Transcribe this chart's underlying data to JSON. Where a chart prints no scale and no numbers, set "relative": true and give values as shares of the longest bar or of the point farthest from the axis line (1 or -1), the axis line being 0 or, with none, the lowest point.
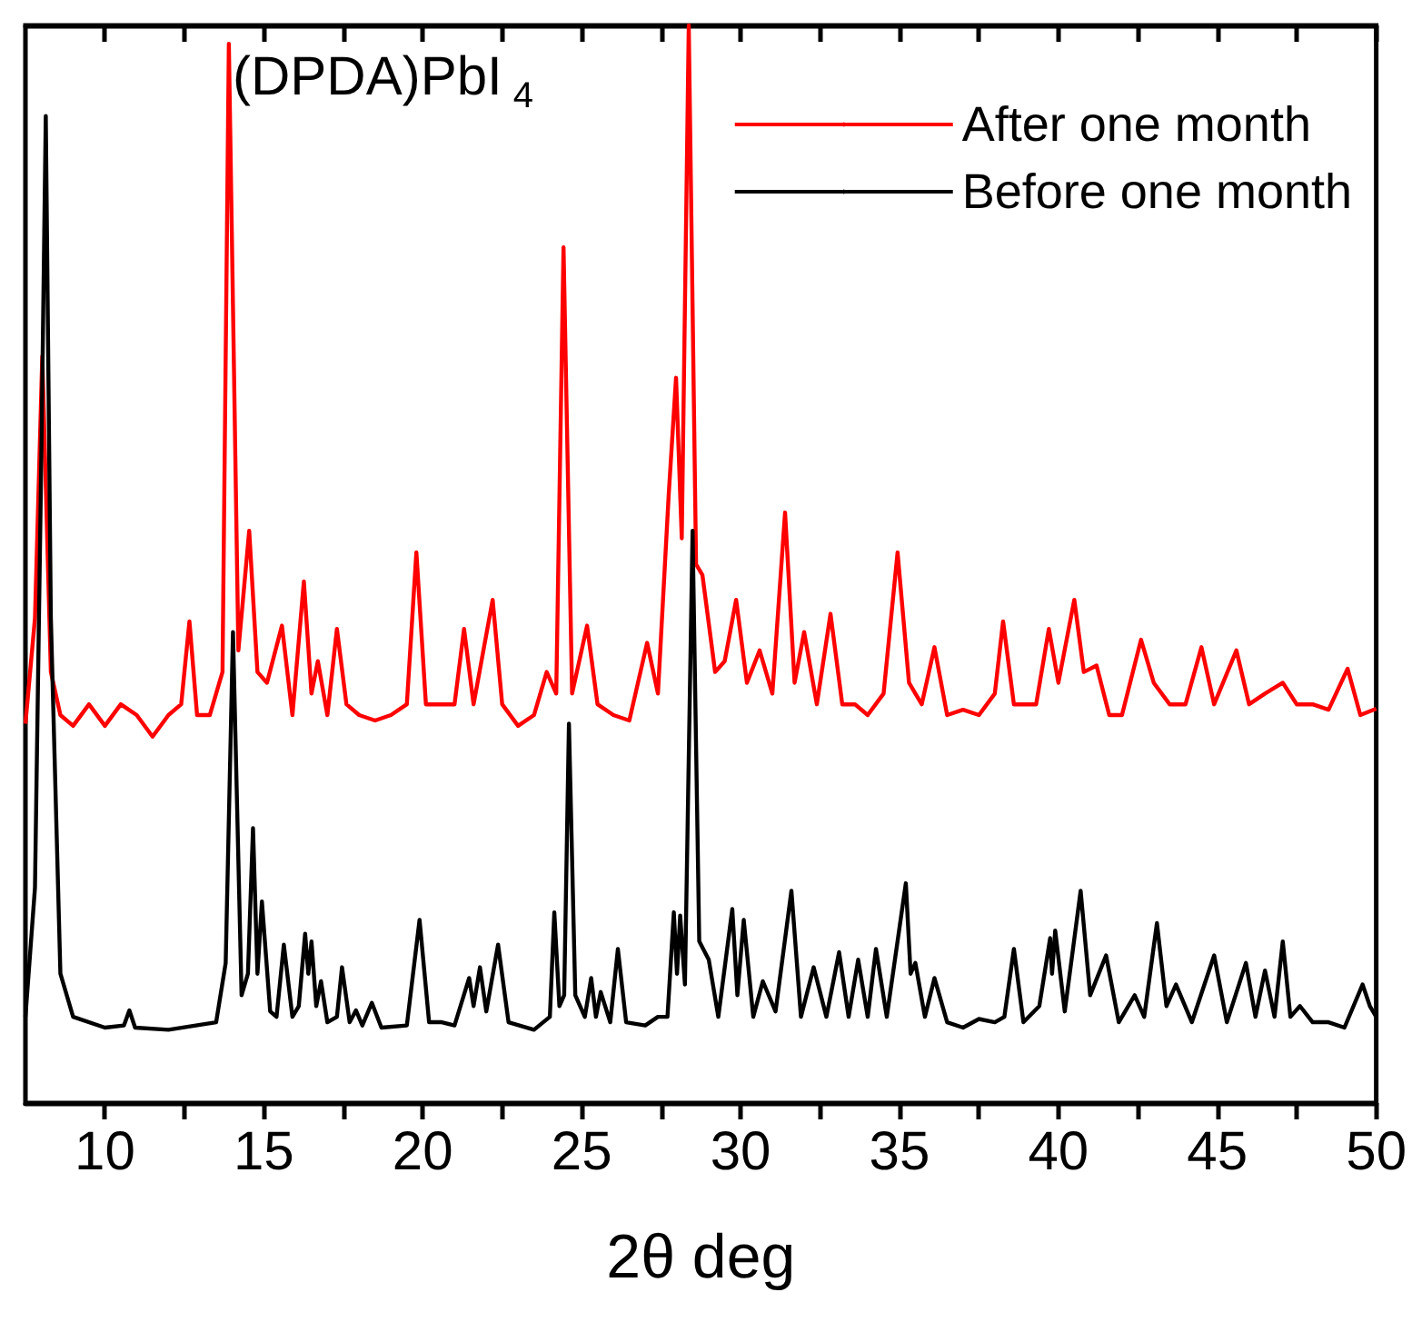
{
  "chart_data": {
    "type": "line",
    "relative": true,
    "xlabel": "2θ deg",
    "legend": "top right",
    "annotations": [
      "(DPDA)PbI$_{4}$"
    ],
    "xlim": [
      7.5,
      50
    ],
    "xticks": [
      10,
      {
        "value": 12.5,
        "label": null
      },
      15,
      {
        "value": 17.5,
        "label": null
      },
      20,
      {
        "value": 22.5,
        "label": null
      },
      25,
      {
        "value": 27.5,
        "label": null
      },
      30,
      {
        "value": 32.5,
        "label": null
      },
      35,
      {
        "value": 37.5,
        "label": null
      },
      40,
      {
        "value": 42.5,
        "label": null
      },
      45,
      {
        "value": 47.5,
        "label": null
      },
      50
    ],
    "series": [
      {
        "name": "After one month",
        "color": "#ff0000",
        "x": [
          7.5,
          7.8,
          8.03,
          8.3,
          8.6,
          9.0,
          9.5,
          10.0,
          10.5,
          11.0,
          11.5,
          12.0,
          12.4,
          12.66,
          12.9,
          13.3,
          13.7,
          13.9,
          14.2,
          14.54,
          14.8,
          15.1,
          15.57,
          15.9,
          16.26,
          16.5,
          16.7,
          17.0,
          17.3,
          17.6,
          18.0,
          18.5,
          19.0,
          19.5,
          19.8,
          20.1,
          20.6,
          21.0,
          21.3,
          21.6,
          22.2,
          22.5,
          23.0,
          23.5,
          23.9,
          24.2,
          24.43,
          24.7,
          25.17,
          25.5,
          26.0,
          26.5,
          27.06,
          27.4,
          27.74,
          27.97,
          28.15,
          28.37,
          28.6,
          28.8,
          29.2,
          29.5,
          29.86,
          30.2,
          30.6,
          31.0,
          31.4,
          31.7,
          32.0,
          32.4,
          32.83,
          33.2,
          33.6,
          34.0,
          34.5,
          34.94,
          35.3,
          35.7,
          36.1,
          36.5,
          37.0,
          37.5,
          38.0,
          38.26,
          38.6,
          39.0,
          39.3,
          39.7,
          40.0,
          40.5,
          40.8,
          41.2,
          41.6,
          42.0,
          42.6,
          43.0,
          43.5,
          44.0,
          44.5,
          44.9,
          45.6,
          46.0,
          46.5,
          47.06,
          47.5,
          48.0,
          48.5,
          49.1,
          49.5,
          50.0
        ],
        "values": [
          0.352,
          0.45,
          0.693,
          0.4,
          0.36,
          0.35,
          0.37,
          0.35,
          0.37,
          0.36,
          0.34,
          0.36,
          0.37,
          0.447,
          0.36,
          0.36,
          0.4,
          0.983,
          0.42,
          0.531,
          0.4,
          0.39,
          0.443,
          0.36,
          0.484,
          0.38,
          0.41,
          0.36,
          0.44,
          0.37,
          0.36,
          0.355,
          0.36,
          0.37,
          0.511,
          0.37,
          0.37,
          0.37,
          0.44,
          0.37,
          0.467,
          0.37,
          0.35,
          0.36,
          0.4,
          0.38,
          0.794,
          0.38,
          0.443,
          0.37,
          0.36,
          0.355,
          0.427,
          0.38,
          0.565,
          0.673,
          0.524,
          1.0,
          0.5,
          0.49,
          0.4,
          0.41,
          0.467,
          0.39,
          0.42,
          0.38,
          0.548,
          0.39,
          0.437,
          0.37,
          0.454,
          0.37,
          0.37,
          0.36,
          0.38,
          0.511,
          0.39,
          0.37,
          0.423,
          0.36,
          0.365,
          0.36,
          0.38,
          0.447,
          0.37,
          0.37,
          0.37,
          0.44,
          0.39,
          0.467,
          0.4,
          0.406,
          0.36,
          0.36,
          0.43,
          0.39,
          0.37,
          0.37,
          0.423,
          0.37,
          0.42,
          0.37,
          0.38,
          0.39,
          0.37,
          0.37,
          0.365,
          0.403,
          0.36,
          0.366
        ]
      },
      {
        "name": "Before one month",
        "color": "#000000",
        "x": [
          7.5,
          7.8,
          8.0,
          8.14,
          8.3,
          8.6,
          9.0,
          10.0,
          10.6,
          10.77,
          10.95,
          12,
          13.5,
          13.8,
          14.03,
          14.3,
          14.5,
          14.66,
          14.8,
          14.94,
          15.2,
          15.4,
          15.63,
          15.9,
          16.1,
          16.3,
          16.4,
          16.5,
          16.65,
          16.8,
          17.0,
          17.3,
          17.46,
          17.7,
          17.9,
          18.1,
          18.4,
          18.7,
          19.5,
          19.9,
          20.2,
          20.6,
          21.0,
          21.46,
          21.6,
          21.8,
          22.0,
          22.37,
          22.7,
          23.5,
          24.0,
          24.14,
          24.3,
          24.45,
          24.6,
          24.8,
          25.1,
          25.3,
          25.45,
          25.6,
          25.9,
          26.14,
          26.4,
          27.0,
          27.4,
          27.7,
          27.9,
          28.0,
          28.1,
          28.25,
          28.49,
          28.7,
          29.0,
          29.3,
          29.74,
          29.9,
          30.1,
          30.4,
          30.7,
          31.1,
          31.6,
          31.9,
          32.3,
          32.7,
          33.1,
          33.4,
          33.7,
          34.0,
          34.26,
          34.6,
          35.2,
          35.35,
          35.5,
          35.8,
          36.1,
          36.5,
          37.0,
          37.5,
          38.0,
          38.3,
          38.6,
          38.9,
          39.4,
          39.74,
          39.8,
          39.9,
          40.2,
          40.7,
          41.0,
          41.5,
          41.9,
          42.4,
          42.7,
          43.1,
          43.4,
          43.7,
          44.2,
          44.9,
          45.3,
          45.9,
          46.2,
          46.5,
          46.8,
          47.06,
          47.3,
          47.6,
          48.0,
          48.5,
          49.0,
          49.57,
          49.8,
          50.0
        ],
        "values": [
          0.08,
          0.2,
          0.6,
          0.916,
          0.45,
          0.12,
          0.08,
          0.07,
          0.072,
          0.086,
          0.07,
          0.068,
          0.075,
          0.13,
          0.437,
          0.1,
          0.12,
          0.255,
          0.12,
          0.187,
          0.085,
          0.08,
          0.147,
          0.08,
          0.09,
          0.157,
          0.12,
          0.15,
          0.09,
          0.113,
          0.075,
          0.08,
          0.126,
          0.075,
          0.086,
          0.072,
          0.093,
          0.07,
          0.072,
          0.17,
          0.075,
          0.075,
          0.072,
          0.116,
          0.09,
          0.126,
          0.085,
          0.147,
          0.075,
          0.068,
          0.08,
          0.177,
          0.09,
          0.1,
          0.352,
          0.1,
          0.08,
          0.116,
          0.08,
          0.103,
          0.075,
          0.143,
          0.075,
          0.072,
          0.08,
          0.08,
          0.177,
          0.12,
          0.174,
          0.11,
          0.531,
          0.15,
          0.133,
          0.08,
          0.18,
          0.1,
          0.17,
          0.08,
          0.113,
          0.085,
          0.197,
          0.08,
          0.126,
          0.08,
          0.14,
          0.08,
          0.133,
          0.08,
          0.143,
          0.08,
          0.204,
          0.12,
          0.13,
          0.08,
          0.116,
          0.075,
          0.07,
          0.078,
          0.075,
          0.08,
          0.143,
          0.075,
          0.09,
          0.153,
          0.12,
          0.16,
          0.085,
          0.197,
          0.1,
          0.137,
          0.075,
          0.1,
          0.08,
          0.167,
          0.09,
          0.11,
          0.075,
          0.137,
          0.075,
          0.13,
          0.08,
          0.123,
          0.08,
          0.15,
          0.08,
          0.09,
          0.075,
          0.075,
          0.07,
          0.11,
          0.09,
          0.08
        ]
      }
    ]
  }
}
